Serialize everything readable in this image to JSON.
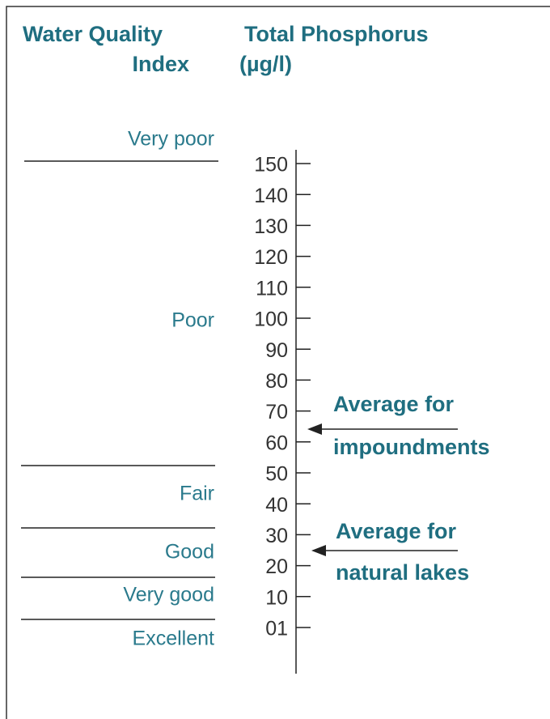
{
  "header": {
    "index_title": [
      "Water Quality",
      "Index"
    ],
    "scale_title": [
      "Total Phosphorus",
      "(µg/l)"
    ]
  },
  "scale": {
    "ticks": [
      "150",
      "140",
      "130",
      "120",
      "110",
      "100",
      "90",
      "80",
      "70",
      "60",
      "50",
      "40",
      "30",
      "20",
      "10",
      "01"
    ]
  },
  "categories": [
    "Very poor",
    "Poor",
    "Fair",
    "Good",
    "Very good",
    "Excellent"
  ],
  "annotations": [
    {
      "lines": [
        "Average for",
        "impoundments"
      ]
    },
    {
      "lines": [
        "Average for",
        "natural lakes"
      ]
    }
  ]
}
